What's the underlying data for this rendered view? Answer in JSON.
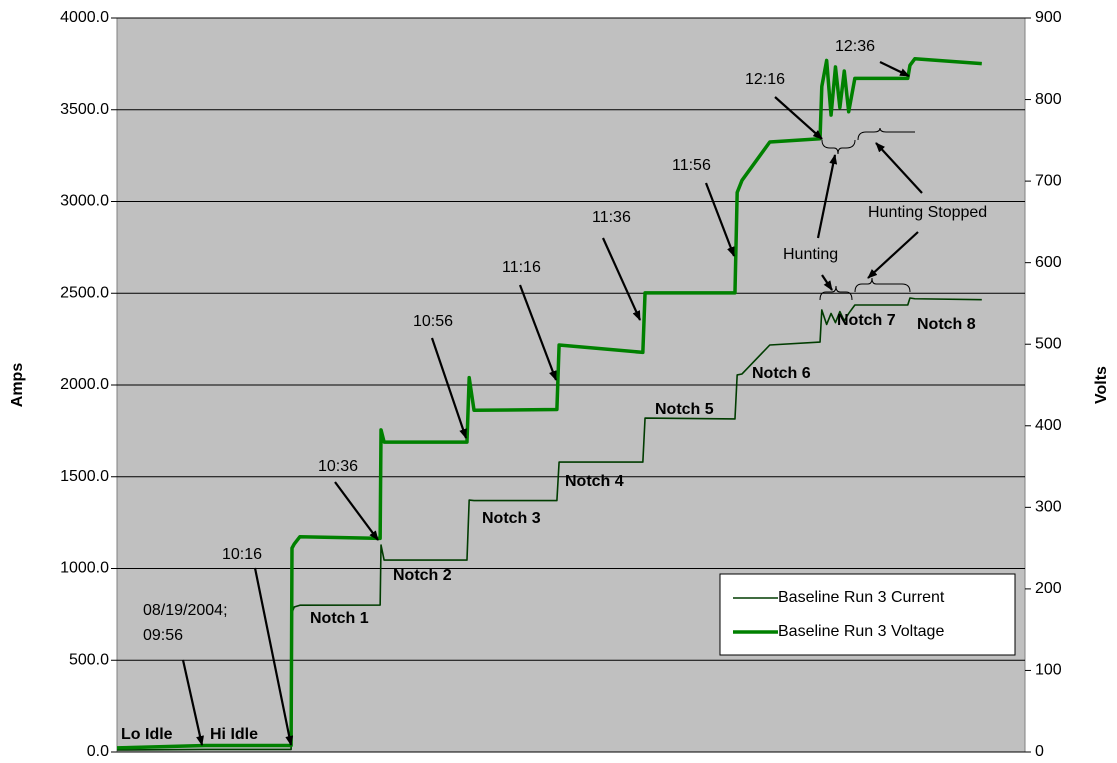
{
  "chart_data": {
    "type": "line",
    "y_label": "Amps",
    "y2_label": "Volts",
    "x": [
      0,
      20,
      39.5,
      39.7,
      40.2,
      41.5,
      59.7,
      59.9,
      60.6,
      79.4,
      79.9,
      81,
      99.8,
      100.3,
      119.3,
      119.8,
      140.2,
      140.7,
      141.8,
      148.1,
      159.5,
      159.9,
      161,
      162,
      163,
      164,
      165,
      166,
      167.4,
      179.4,
      179.9,
      181,
      196.2
    ],
    "xlim": [
      0,
      206
    ],
    "series": [
      {
        "name": "Baseline Run 3 Current",
        "color": "#003c00",
        "values": [
          11,
          14,
          14,
          760,
          790,
          800,
          801,
          1128,
          1046,
          1046,
          1373,
          1370,
          1370,
          1580,
          1580,
          1820,
          1815,
          2055,
          2060,
          2218,
          2234,
          2409,
          2330,
          2390,
          2340,
          2400,
          2350,
          2390,
          2436,
          2436,
          2474,
          2470,
          2465
        ]
      },
      {
        "name": "Baseline Run 3 Voltage",
        "color": "#008000",
        "axis": "y2",
        "values": [
          5,
          8,
          8,
          250,
          255,
          264,
          262,
          395,
          380,
          380,
          459,
          419,
          420,
          499,
          490,
          563,
          563,
          686,
          701,
          748,
          752,
          816,
          848,
          781,
          840,
          790,
          835,
          785,
          826,
          826,
          842,
          850,
          844
        ]
      }
    ],
    "ylim": [
      0,
      4000
    ],
    "yticks": [
      {
        "value": 0,
        "label": "0.0"
      },
      {
        "value": 500,
        "label": "500.0"
      },
      {
        "value": 1000,
        "label": "1000.0"
      },
      {
        "value": 1500,
        "label": "1500.0"
      },
      {
        "value": 2000,
        "label": "2000.0"
      },
      {
        "value": 2500,
        "label": "2500.0"
      },
      {
        "value": 3000,
        "label": "3000.0"
      },
      {
        "value": 3500,
        "label": "3500.0"
      },
      {
        "value": 4000,
        "label": "4000.0"
      }
    ],
    "y2lim": [
      0,
      900
    ],
    "y2ticks": [
      0,
      100,
      200,
      300,
      400,
      500,
      600,
      700,
      800,
      900
    ],
    "grid": true,
    "legend": "lower right",
    "annotations": [
      "Lo Idle",
      "Hi Idle",
      [
        "08/19/2004;",
        "09:56"
      ],
      "10:16",
      "10:36",
      "10:56",
      "11:16",
      "11:36",
      "11:56",
      "12:16",
      "12:36",
      "Hunting",
      "Hunting Stopped",
      "Notch 1",
      "Notch 2",
      "Notch 3",
      "Notch 4",
      "Notch 5",
      "Notch 6",
      "Notch 7",
      "Notch 8"
    ]
  }
}
